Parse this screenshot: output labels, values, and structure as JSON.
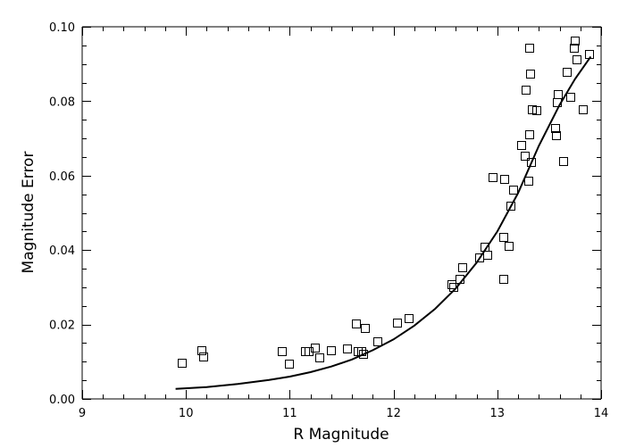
{
  "chart_data": {
    "type": "scatter",
    "title": "",
    "xlabel": "R Magnitude",
    "ylabel": "Magnitude Error",
    "xlim": [
      9,
      14
    ],
    "ylim": [
      0,
      0.1
    ],
    "grid": false,
    "legend": "none",
    "x_ticks": [
      9,
      10,
      11,
      12,
      13,
      14
    ],
    "x_tick_labels": [
      "9",
      "10",
      "11",
      "12",
      "13",
      "14"
    ],
    "y_ticks": [
      0,
      0.02,
      0.04,
      0.06,
      0.08,
      0.1
    ],
    "y_tick_labels": [
      "0.00",
      "0.02",
      "0.04",
      "0.06",
      "0.08",
      "0.10"
    ],
    "marker": "open-square",
    "points": [
      [
        9.96,
        0.0097
      ],
      [
        10.15,
        0.013
      ],
      [
        10.17,
        0.0112
      ],
      [
        10.93,
        0.0127
      ],
      [
        11.0,
        0.0093
      ],
      [
        11.15,
        0.0126
      ],
      [
        11.19,
        0.0128
      ],
      [
        11.25,
        0.0136
      ],
      [
        11.29,
        0.0111
      ],
      [
        11.4,
        0.0129
      ],
      [
        11.56,
        0.0135
      ],
      [
        11.64,
        0.0202
      ],
      [
        11.66,
        0.0127
      ],
      [
        11.69,
        0.0128
      ],
      [
        11.71,
        0.0121
      ],
      [
        11.73,
        0.019
      ],
      [
        11.85,
        0.0154
      ],
      [
        12.04,
        0.0203
      ],
      [
        12.15,
        0.0216
      ],
      [
        12.56,
        0.0308
      ],
      [
        12.58,
        0.03
      ],
      [
        12.64,
        0.0322
      ],
      [
        12.67,
        0.0352
      ],
      [
        12.83,
        0.0378
      ],
      [
        12.88,
        0.0407
      ],
      [
        12.91,
        0.0386
      ],
      [
        12.96,
        0.0594
      ],
      [
        13.06,
        0.0433
      ],
      [
        13.06,
        0.0322
      ],
      [
        13.07,
        0.0591
      ],
      [
        13.11,
        0.041
      ],
      [
        13.13,
        0.0518
      ],
      [
        13.16,
        0.0561
      ],
      [
        13.23,
        0.068
      ],
      [
        13.27,
        0.0652
      ],
      [
        13.28,
        0.083
      ],
      [
        13.3,
        0.0585
      ],
      [
        13.31,
        0.0942
      ],
      [
        13.31,
        0.0709
      ],
      [
        13.32,
        0.0873
      ],
      [
        13.33,
        0.0636
      ],
      [
        13.34,
        0.0777
      ],
      [
        13.38,
        0.0775
      ],
      [
        13.56,
        0.0726
      ],
      [
        13.57,
        0.0708
      ],
      [
        13.58,
        0.0796
      ],
      [
        13.59,
        0.0817
      ],
      [
        13.64,
        0.0638
      ],
      [
        13.67,
        0.0878
      ],
      [
        13.71,
        0.081
      ],
      [
        13.74,
        0.0942
      ],
      [
        13.75,
        0.0962
      ],
      [
        13.77,
        0.0911
      ],
      [
        13.83,
        0.0776
      ],
      [
        13.89,
        0.0925
      ]
    ],
    "fit_curve": {
      "style": "solid",
      "points": [
        [
          9.9,
          0.0027
        ],
        [
          10.2,
          0.0032
        ],
        [
          10.5,
          0.004
        ],
        [
          10.8,
          0.0051
        ],
        [
          11.0,
          0.006
        ],
        [
          11.2,
          0.0072
        ],
        [
          11.4,
          0.0087
        ],
        [
          11.6,
          0.0106
        ],
        [
          11.8,
          0.0131
        ],
        [
          12.0,
          0.016
        ],
        [
          12.2,
          0.0197
        ],
        [
          12.4,
          0.0242
        ],
        [
          12.6,
          0.0297
        ],
        [
          12.8,
          0.0366
        ],
        [
          13.0,
          0.045
        ],
        [
          13.2,
          0.0553
        ],
        [
          13.4,
          0.068
        ],
        [
          13.6,
          0.079
        ],
        [
          13.75,
          0.086
        ],
        [
          13.9,
          0.092
        ]
      ]
    }
  }
}
